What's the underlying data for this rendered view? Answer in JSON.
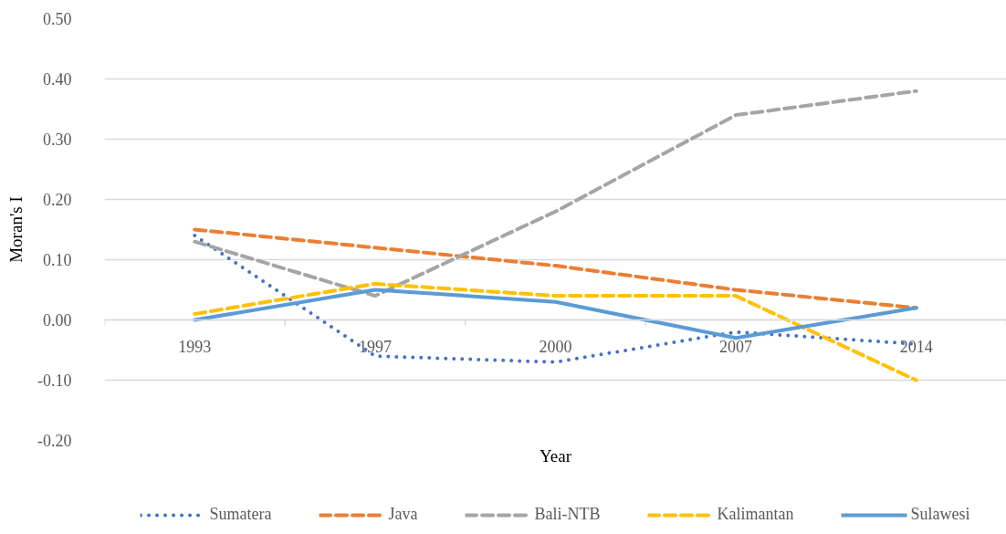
{
  "chart_data": {
    "type": "line",
    "xlabel": "Year",
    "ylabel": "Moran's I",
    "categories": [
      "1993",
      "1997",
      "2000",
      "2007",
      "2014"
    ],
    "series": [
      {
        "name": "Sumatera",
        "color": "#4472c4",
        "line_style": "dotted",
        "values": [
          0.14,
          -0.06,
          -0.07,
          -0.02,
          -0.04
        ]
      },
      {
        "name": "Java",
        "color": "#ed7d31",
        "line_style": "dashed",
        "values": [
          0.15,
          0.12,
          0.09,
          0.05,
          0.02
        ]
      },
      {
        "name": "Bali-NTB",
        "color": "#a5a5a5",
        "line_style": "dashed",
        "values": [
          0.13,
          0.04,
          0.18,
          0.34,
          0.38
        ]
      },
      {
        "name": "Kalimantan",
        "color": "#ffc000",
        "line_style": "dashed",
        "values": [
          0.01,
          0.06,
          0.04,
          0.04,
          -0.1
        ]
      },
      {
        "name": "Sulawesi",
        "color": "#5b9bd5",
        "line_style": "solid",
        "values": [
          0.0,
          0.05,
          0.03,
          -0.03,
          0.02
        ]
      }
    ],
    "ylim": [
      -0.2,
      0.5
    ],
    "yticks": [
      {
        "value": -0.2,
        "label": "-0.20"
      },
      {
        "value": -0.1,
        "label": "-0.10"
      },
      {
        "value": 0,
        "label": "0.00"
      },
      {
        "value": 0.1,
        "label": "0.10"
      },
      {
        "value": 0.2,
        "label": "0.20"
      },
      {
        "value": 0.3,
        "label": "0.30"
      },
      {
        "value": 0.4,
        "label": "0.40"
      },
      {
        "value": 0.5,
        "label": "0.50"
      }
    ],
    "grid": "y",
    "legend": "bottom"
  }
}
